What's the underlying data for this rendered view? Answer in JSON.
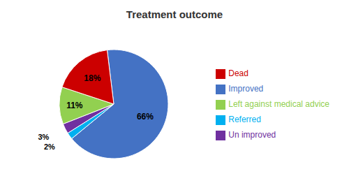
{
  "chart_data": {
    "type": "pie",
    "title": "Treatment outcome",
    "categories": [
      "Improved",
      "Referred",
      "Un improved",
      "Left against medical advice",
      "Dead"
    ],
    "values": [
      66,
      2,
      3,
      11,
      18
    ],
    "value_labels": [
      "66%",
      "2%",
      "3%",
      "11%",
      "18%"
    ],
    "colors": [
      "#4472C4",
      "#00B0F0",
      "#7030A0",
      "#92D050",
      "#CC0000"
    ],
    "data_labels": true,
    "legend": "right"
  }
}
